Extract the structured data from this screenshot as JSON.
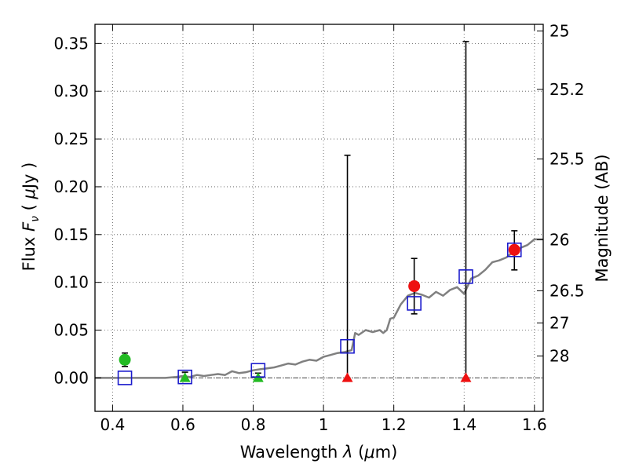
{
  "chart_data": {
    "type": "scatter",
    "xlabel": "Wavelength  λ (μm)",
    "ylabel": "Flux  F_ν  ( μJy )",
    "ylabel_right": "Magnitude (AB)",
    "xlim": [
      0.35,
      1.625
    ],
    "ylim": [
      -0.035,
      0.37
    ],
    "grid": true,
    "x_ticks": [
      0.4,
      0.6,
      0.8,
      1.0,
      1.2,
      1.4,
      1.6
    ],
    "x_tick_labels": [
      "0.4",
      "0.6",
      "0.8",
      "1",
      "1.2",
      "1.4",
      "1.6"
    ],
    "y_ticks": [
      0.0,
      0.05,
      0.1,
      0.15,
      0.2,
      0.25,
      0.3,
      0.35
    ],
    "y_tick_labels": [
      "0.00",
      "0.05",
      "0.10",
      "0.15",
      "0.20",
      "0.25",
      "0.30",
      "0.35"
    ],
    "right_ticks": [
      {
        "label": "25",
        "mag": 25.0
      },
      {
        "label": "25.2",
        "mag": 25.2
      },
      {
        "label": "25.5",
        "mag": 25.5
      },
      {
        "label": "26",
        "mag": 26.0
      },
      {
        "label": "26.5",
        "mag": 26.5
      },
      {
        "label": "27",
        "mag": 27.0
      },
      {
        "label": "28",
        "mag": 28.0
      }
    ],
    "detections": [
      {
        "x": 0.435,
        "y": 0.019,
        "err_low": 0.007,
        "err_high": 0.007,
        "color": "#22bb22"
      },
      {
        "x": 1.258,
        "y": 0.096,
        "err_low": 0.029,
        "err_high": 0.029,
        "color": "#ee1111"
      },
      {
        "x": 1.543,
        "y": 0.134,
        "err_low": 0.021,
        "err_high": 0.02,
        "color": "#ee1111"
      }
    ],
    "upper_limits": [
      {
        "x": 0.606,
        "y": 0.0,
        "err_high": 0.006,
        "color": "#22bb22"
      },
      {
        "x": 0.814,
        "y": 0.0,
        "err_high": 0.005,
        "color": "#22bb22"
      },
      {
        "x": 1.068,
        "y": 0.0,
        "err_high": 0.233,
        "color": "#ee1111"
      },
      {
        "x": 1.405,
        "y": 0.0,
        "err_high": 0.352,
        "color": "#ee1111"
      }
    ],
    "model_photometry": [
      {
        "x": 0.435,
        "y": 0.0
      },
      {
        "x": 0.606,
        "y": 0.001
      },
      {
        "x": 0.814,
        "y": 0.008
      },
      {
        "x": 1.068,
        "y": 0.033
      },
      {
        "x": 1.258,
        "y": 0.078
      },
      {
        "x": 1.405,
        "y": 0.106
      },
      {
        "x": 1.543,
        "y": 0.134
      }
    ],
    "model_spectrum": {
      "x": [
        0.35,
        0.4,
        0.45,
        0.5,
        0.55,
        0.58,
        0.6,
        0.62,
        0.64,
        0.66,
        0.68,
        0.7,
        0.72,
        0.74,
        0.76,
        0.78,
        0.8,
        0.82,
        0.84,
        0.86,
        0.88,
        0.9,
        0.92,
        0.94,
        0.96,
        0.98,
        1.0,
        1.02,
        1.04,
        1.06,
        1.08,
        1.09,
        1.1,
        1.12,
        1.14,
        1.16,
        1.17,
        1.18,
        1.19,
        1.2,
        1.22,
        1.24,
        1.26,
        1.28,
        1.3,
        1.32,
        1.34,
        1.36,
        1.38,
        1.4,
        1.42,
        1.44,
        1.46,
        1.48,
        1.5,
        1.52,
        1.54,
        1.56,
        1.58,
        1.6,
        1.625
      ],
      "y": [
        0.0,
        0.0,
        0.0,
        0.0,
        0.0,
        0.001,
        0.002,
        0.001,
        0.003,
        0.002,
        0.003,
        0.004,
        0.003,
        0.007,
        0.005,
        0.006,
        0.008,
        0.009,
        0.01,
        0.011,
        0.013,
        0.015,
        0.014,
        0.017,
        0.019,
        0.018,
        0.022,
        0.024,
        0.026,
        0.027,
        0.029,
        0.047,
        0.045,
        0.05,
        0.048,
        0.05,
        0.047,
        0.05,
        0.062,
        0.063,
        0.077,
        0.086,
        0.089,
        0.087,
        0.084,
        0.09,
        0.086,
        0.092,
        0.095,
        0.088,
        0.104,
        0.107,
        0.113,
        0.121,
        0.123,
        0.126,
        0.132,
        0.136,
        0.139,
        0.145,
        0.145
      ]
    }
  }
}
